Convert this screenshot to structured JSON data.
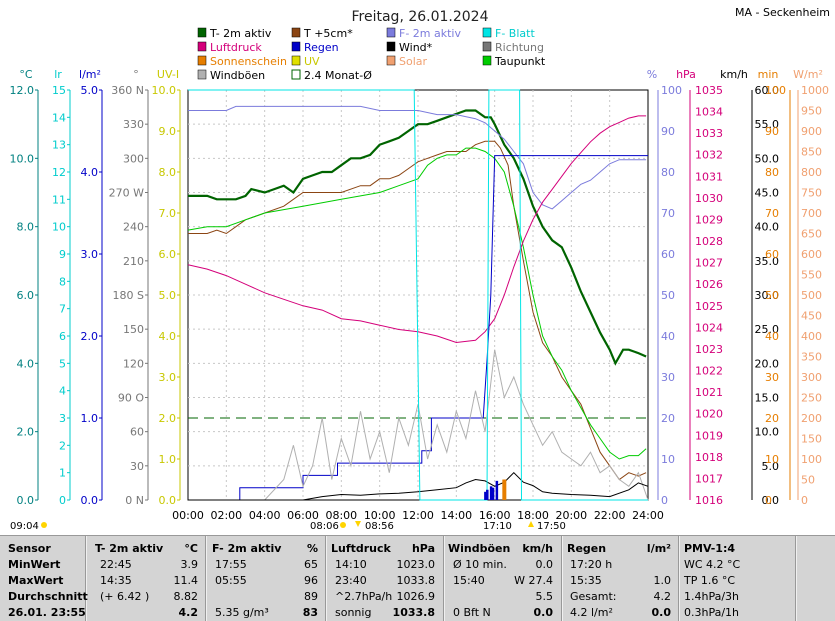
{
  "title": "Freitag, 26.01.2024",
  "station": "MA - Seckenheim",
  "legend": [
    {
      "label": "T- 2m aktiv",
      "color": "#006400",
      "kind": "box"
    },
    {
      "label": "T +5cm*",
      "color": "#8b4513",
      "kind": "box"
    },
    {
      "label": "F- 2m aktiv",
      "color": "#7b7bdc",
      "kind": "box"
    },
    {
      "label": "F- Blatt",
      "color": "#00e5e5",
      "kind": "box"
    },
    {
      "label": "Luftdruck",
      "color": "#d4007a",
      "kind": "box"
    },
    {
      "label": "Regen",
      "color": "#0000c8",
      "kind": "box"
    },
    {
      "label": "Wind*",
      "color": "#000000",
      "kind": "box"
    },
    {
      "label": "Richtung",
      "color": "#777777",
      "kind": "box"
    },
    {
      "label": "Sonnenschein",
      "color": "#e67e00",
      "kind": "box"
    },
    {
      "label": "UV",
      "color": "#e0e000",
      "kind": "box"
    },
    {
      "label": "Solar",
      "color": "#f0a070",
      "kind": "box"
    },
    {
      "label": "Taupunkt",
      "color": "#00cc00",
      "kind": "box"
    },
    {
      "label": "Windböen",
      "color": "#b0b0b0",
      "kind": "box"
    },
    {
      "label": "2.4 Monat-Ø",
      "color": "#006400",
      "kind": "open"
    }
  ],
  "axes": {
    "left": [
      {
        "unit": "°C",
        "color": "#008080",
        "ticks": [
          "12.0",
          "10.0",
          "8.0",
          "6.0",
          "4.0",
          "2.0",
          "0.0"
        ]
      },
      {
        "unit": "lr",
        "color": "#00cccc",
        "ticks": [
          "15",
          "14",
          "13",
          "12",
          "11",
          "10",
          "9",
          "8",
          "7",
          "6",
          "5",
          "4",
          "3",
          "2",
          "1",
          "0"
        ]
      },
      {
        "unit": "l/m²",
        "color": "#0000c8",
        "ticks": [
          "5.0",
          "4.0",
          "3.0",
          "2.0",
          "1.0",
          "0.0"
        ]
      },
      {
        "unit": "°",
        "color": "#777777",
        "ticks": [
          "360 N",
          "330",
          "300",
          "270 W",
          "240",
          "210",
          "180 S",
          "150",
          "120",
          "90 O",
          "60",
          "30",
          "0 N"
        ]
      },
      {
        "unit": "UV-I",
        "color": "#c8c800",
        "ticks": [
          "10.0",
          "9.0",
          "8.0",
          "7.0",
          "6.0",
          "5.0",
          "4.0",
          "3.0",
          "2.0",
          "1.0",
          "0.0"
        ]
      }
    ],
    "right": [
      {
        "unit": "%",
        "color": "#7b7bdc",
        "ticks": [
          "100",
          "90",
          "80",
          "70",
          "60",
          "50",
          "40",
          "30",
          "20",
          "10",
          "0"
        ]
      },
      {
        "unit": "hPa",
        "color": "#d4007a",
        "ticks": [
          "1035",
          "1034",
          "1033",
          "1032",
          "1031",
          "1030",
          "1029",
          "1028",
          "1027",
          "1026",
          "1025",
          "1024",
          "1023",
          "1022",
          "1021",
          "1020",
          "1019",
          "1018",
          "1017",
          "1016"
        ]
      },
      {
        "unit": "km/h",
        "color": "#000000",
        "ticks": [
          "60.0",
          "55.0",
          "50.0",
          "45.0",
          "40.0",
          "35.0",
          "30.0",
          "25.0",
          "20.0",
          "15.0",
          "10.0",
          "5.0",
          "0.0"
        ]
      },
      {
        "unit": "min",
        "color": "#e67e00",
        "ticks": [
          "100",
          "90",
          "80",
          "70",
          "60",
          "50",
          "40",
          "30",
          "20",
          "10",
          "0"
        ]
      },
      {
        "unit": "W/m²",
        "color": "#f0a070",
        "ticks": [
          "1000",
          "950",
          "900",
          "850",
          "800",
          "750",
          "700",
          "650",
          "600",
          "550",
          "500",
          "450",
          "400",
          "350",
          "300",
          "250",
          "200",
          "150",
          "100",
          "50",
          "0"
        ]
      }
    ],
    "x_ticks": [
      "00:00",
      "02:00",
      "04:00",
      "06:00",
      "08:00",
      "10:00",
      "12:00",
      "14:00",
      "16:00",
      "18:00",
      "20:00",
      "22:00",
      "24:00"
    ]
  },
  "markers": {
    "moon_set": "09:04",
    "sunrise": "08:06",
    "sun_culm": "08:56",
    "sunset_left": "17:10",
    "sunset_right": "17:50"
  },
  "chart_data": {
    "type": "line",
    "x_unit": "hour",
    "series": [
      {
        "name": "T- 2m aktiv",
        "axis": "°C",
        "color": "#006400",
        "x": [
          0,
          1,
          1.5,
          2,
          2.5,
          3,
          3.3,
          4,
          4.5,
          5,
          5.5,
          6,
          6.5,
          7,
          7.5,
          8,
          8.5,
          9,
          9.5,
          10,
          10.5,
          11,
          11.5,
          12,
          12.5,
          13,
          13.5,
          14,
          14.5,
          15,
          15.5,
          15.8,
          16,
          16.5,
          17,
          17.5,
          18,
          18.5,
          19,
          19.5,
          20,
          20.5,
          21,
          21.5,
          22,
          22.3,
          22.7,
          23,
          23.5,
          23.9
        ],
        "y": [
          8.9,
          8.9,
          8.8,
          8.8,
          8.8,
          8.9,
          9.1,
          9.0,
          9.1,
          9.2,
          9.0,
          9.4,
          9.5,
          9.6,
          9.6,
          9.8,
          10.0,
          10.0,
          10.1,
          10.4,
          10.5,
          10.6,
          10.8,
          11.0,
          11.0,
          11.1,
          11.2,
          11.3,
          11.4,
          11.4,
          11.2,
          11.2,
          11.0,
          10.4,
          10.0,
          9.4,
          8.6,
          8.0,
          7.6,
          7.4,
          6.8,
          6.1,
          5.5,
          4.9,
          4.4,
          4.0,
          4.4,
          4.4,
          4.3,
          4.2
        ]
      },
      {
        "name": "T +5cm*",
        "axis": "°C",
        "color": "#8b4513",
        "x": [
          0,
          1,
          1.5,
          2,
          2.5,
          3,
          4,
          5,
          5.5,
          6,
          7,
          8,
          9,
          9.5,
          10,
          10.5,
          11,
          11.5,
          12,
          12.5,
          13,
          13.5,
          14,
          14.5,
          15,
          15.5,
          16,
          16.3,
          16.7,
          17,
          17.5,
          18,
          18.5,
          19,
          19.5,
          20,
          20.5,
          21,
          21.5,
          22,
          22.5,
          23,
          23.5,
          23.9
        ],
        "y": [
          7.8,
          7.8,
          7.9,
          7.8,
          8.0,
          8.2,
          8.4,
          8.6,
          8.8,
          9.0,
          9.0,
          9.0,
          9.2,
          9.2,
          9.4,
          9.4,
          9.5,
          9.7,
          9.9,
          10.0,
          10.1,
          10.2,
          10.2,
          10.2,
          10.4,
          10.5,
          10.5,
          10.3,
          9.8,
          8.6,
          7.0,
          5.5,
          4.6,
          4.2,
          3.6,
          3.2,
          2.8,
          2.1,
          1.4,
          1.0,
          0.6,
          0.8,
          0.7,
          0.8
        ]
      },
      {
        "name": "Taupunkt",
        "axis": "°C",
        "color": "#00cc00",
        "x": [
          0,
          1,
          2,
          3,
          4,
          5,
          6,
          7,
          8,
          9,
          10,
          11,
          12,
          12.5,
          13,
          13.5,
          14,
          14.5,
          15,
          15.5,
          16,
          16.5,
          17,
          17.5,
          18,
          18.5,
          19,
          19.5,
          20,
          20.5,
          21,
          21.5,
          22,
          22.5,
          23,
          23.5,
          23.9
        ],
        "y": [
          7.9,
          8.0,
          8.0,
          8.2,
          8.4,
          8.5,
          8.6,
          8.7,
          8.8,
          8.9,
          9.0,
          9.2,
          9.4,
          9.8,
          10.0,
          10.1,
          10.1,
          10.3,
          10.3,
          10.2,
          10.0,
          9.6,
          8.6,
          7.4,
          6.0,
          4.8,
          4.2,
          3.8,
          3.2,
          2.7,
          2.2,
          1.8,
          1.4,
          1.2,
          1.3,
          1.3,
          1.5
        ]
      },
      {
        "name": "F- 2m aktiv",
        "axis": "%",
        "color": "#7b7bdc",
        "x": [
          0,
          1,
          2,
          2.5,
          3,
          4,
          5,
          6,
          7,
          8,
          9,
          10,
          11,
          12,
          13,
          14,
          15,
          15.5,
          16,
          16.5,
          17,
          17.5,
          18,
          18.5,
          19,
          19.5,
          20,
          20.5,
          21,
          21.5,
          22,
          22.5,
          23,
          23.5,
          23.9
        ],
        "y": [
          95,
          95,
          95,
          96,
          96,
          96,
          96,
          96,
          96,
          96,
          96,
          95,
          95,
          95,
          94,
          94,
          93,
          92,
          90,
          88,
          85,
          82,
          75,
          72,
          71,
          73,
          75,
          77,
          78,
          80,
          82,
          83,
          83,
          83,
          83
        ]
      },
      {
        "name": "Luftdruck",
        "axis": "hPa",
        "color": "#d4007a",
        "x": [
          0,
          1,
          2,
          3,
          4,
          5,
          6,
          7,
          8,
          9,
          10,
          11,
          12,
          13,
          14,
          15,
          15.5,
          16,
          16.5,
          17,
          17.5,
          18,
          18.5,
          19,
          19.5,
          20,
          20.5,
          21,
          21.5,
          22,
          22.5,
          23,
          23.5,
          23.9
        ],
        "y": [
          1026.9,
          1026.7,
          1026.4,
          1026.0,
          1025.6,
          1025.3,
          1025.0,
          1024.8,
          1024.4,
          1024.3,
          1024.1,
          1023.9,
          1023.8,
          1023.6,
          1023.3,
          1023.4,
          1023.8,
          1024.4,
          1025.5,
          1026.8,
          1028.0,
          1029.0,
          1029.8,
          1030.4,
          1031.0,
          1031.6,
          1032.1,
          1032.6,
          1033.0,
          1033.3,
          1033.5,
          1033.7,
          1033.8,
          1033.8
        ]
      },
      {
        "name": "Regen",
        "axis": "l/m²",
        "color": "#0000c8",
        "x": [
          0,
          2.7,
          2.7,
          6,
          6,
          7.8,
          7.8,
          12.2,
          12.2,
          12.7,
          12.7,
          15.4,
          15.6,
          15.8,
          16,
          16.2,
          17,
          24
        ],
        "y": [
          0,
          0,
          0.15,
          0.15,
          0.3,
          0.3,
          0.45,
          0.45,
          0.6,
          0.6,
          1.0,
          1.0,
          1.7,
          2.5,
          4.2,
          4.2,
          4.2,
          4.2
        ]
      },
      {
        "name": "Windböen",
        "axis": "km/h",
        "color": "#b0b0b0",
        "x": [
          0,
          2,
          4,
          5,
          5.5,
          6,
          6.5,
          7,
          7.5,
          8,
          8.5,
          9,
          9.5,
          10,
          10.5,
          11,
          11.5,
          12,
          12.5,
          13,
          13.5,
          14,
          14.5,
          15,
          15.5,
          16,
          16.5,
          17,
          17.5,
          18,
          18.5,
          19,
          19.5,
          20,
          20.5,
          21,
          21.5,
          22,
          22.5,
          23,
          23.5,
          24
        ],
        "y": [
          0,
          0,
          0,
          3,
          8,
          2,
          5,
          12,
          3,
          9,
          5,
          13,
          6,
          10,
          4,
          12,
          8,
          14,
          6,
          11,
          7,
          13,
          9,
          16,
          10,
          22,
          15,
          18,
          14,
          11,
          8,
          10,
          7,
          6,
          5,
          7,
          4,
          5,
          3,
          2,
          4,
          0
        ]
      },
      {
        "name": "Wind*",
        "axis": "km/h",
        "color": "#000000",
        "x": [
          0,
          6,
          7,
          8,
          9,
          10,
          11,
          12,
          13,
          14,
          14.5,
          15,
          15.5,
          16,
          16.5,
          17,
          17.5,
          18,
          18.5,
          19,
          20,
          21,
          22,
          23,
          23.5,
          24
        ],
        "y": [
          0,
          0,
          0.5,
          0.8,
          0.7,
          0.9,
          1,
          1.2,
          1.5,
          1.8,
          2.5,
          3,
          2.8,
          2,
          2.6,
          4,
          2.6,
          2.1,
          1.2,
          1,
          0.8,
          0.7,
          0.5,
          1.5,
          2.5,
          2
        ]
      },
      {
        "name": "F- Blatt",
        "axis": "lr",
        "color": "#00e5e5",
        "x": [
          0,
          11.7,
          11.8,
          12.1,
          12.2,
          15.6,
          15.7,
          17.3,
          17.4,
          21,
          21.1,
          24
        ],
        "y": [
          15,
          15,
          15,
          0,
          0,
          0,
          15,
          15,
          0,
          0,
          0,
          0
        ]
      }
    ],
    "gust_dashed": {
      "label": "2.4 Monat-Ø",
      "value": 2.4,
      "axis": "°C"
    }
  },
  "table": {
    "headers": [
      "Sensor",
      "T- 2m aktiv",
      "°C",
      "F- 2m aktiv",
      "%",
      "Luftdruck",
      "hPa",
      "Windböen",
      "km/h",
      "Regen",
      "l/m²",
      "PMV-1:4"
    ],
    "rows": [
      {
        "label": "MinWert",
        "t_time": "22:45",
        "t_val": "3.9",
        "f_time": "17:55",
        "f_val": "65",
        "p_time": "14:10",
        "p_val": "1023.0",
        "w_text": "Ø 10 min.",
        "w_val": "0.0",
        "r_time": "17:20 h",
        "r_val": "",
        "pmv": "WC 4.2 °C"
      },
      {
        "label": "MaxWert",
        "t_time": "14:35",
        "t_val": "11.4",
        "f_time": "05:55",
        "f_val": "96",
        "p_time": "23:40",
        "p_val": "1033.8",
        "w_text": "15:40",
        "w_val": "W 27.4",
        "r_time": "15:35",
        "r_val": "1.0",
        "pmv": "TP 1.6 °C"
      },
      {
        "label": "Durchschnitt",
        "t_time": "(+ 6.42 )",
        "t_val": "8.82",
        "f_time": "",
        "f_val": "89",
        "p_time": "^2.7hPa/h",
        "p_val": "1026.9",
        "w_text": "",
        "w_val": "5.5",
        "r_time": "Gesamt:",
        "r_val": "4.2",
        "pmv": "1.4hPa/3h"
      },
      {
        "label": "26.01. 23:55",
        "t_time": "",
        "t_val": "4.2",
        "f_time": "5.35 g/m³",
        "f_val": "83",
        "p_time": "sonnig",
        "p_val": "1033.8",
        "w_text": "0 Bft N",
        "w_val": "0.0",
        "r_time": "4.2 l/m²",
        "r_val": "0.0",
        "pmv": "0.3hPa/1h"
      }
    ]
  }
}
